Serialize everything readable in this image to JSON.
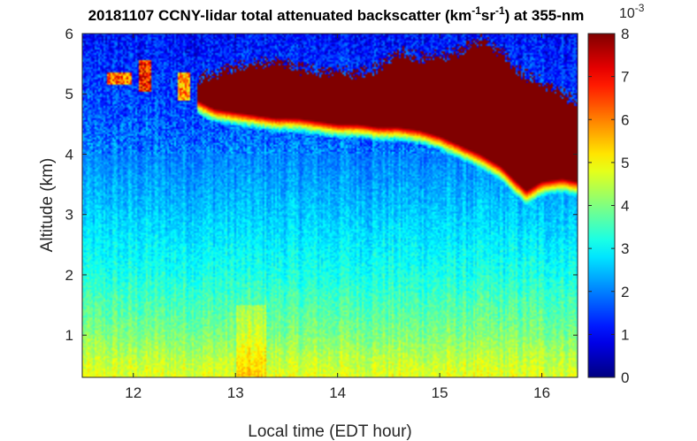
{
  "chart_data": {
    "type": "heatmap",
    "title": {
      "prefix": "20181107 CCNY-lidar total attenuated backscatter (km",
      "sup1": "-1",
      "mid": "sr",
      "sup2": "-1",
      "suffix": ") at 355-nm"
    },
    "xlabel": "Local time (EDT hour)",
    "ylabel": "Altitude (km)",
    "xlim": [
      11.5,
      16.35
    ],
    "ylim": [
      0.3,
      6
    ],
    "xticks": [
      12,
      13,
      14,
      15,
      16
    ],
    "yticks": [
      1,
      2,
      3,
      4,
      5,
      6
    ],
    "colorbar": {
      "range": [
        0,
        8
      ],
      "ticks": [
        0,
        1,
        2,
        3,
        4,
        5,
        6,
        7,
        8
      ],
      "exponent_label": "10",
      "exponent": "-3",
      "colormap": "jet"
    },
    "background_profile": {
      "altitude_km": [
        0.3,
        0.6,
        1.0,
        1.5,
        2.0,
        2.5,
        3.0,
        3.5,
        4.0,
        4.5,
        5.0,
        5.5,
        6.0
      ],
      "value": [
        4.8,
        4.5,
        4.0,
        3.6,
        3.2,
        2.9,
        2.6,
        2.3,
        2.0,
        1.7,
        1.5,
        1.3,
        1.1
      ]
    },
    "cloud_layer": {
      "time_hr": [
        12.62,
        12.8,
        13.0,
        13.2,
        13.4,
        13.6,
        13.8,
        14.0,
        14.2,
        14.4,
        14.6,
        14.8,
        15.0,
        15.2,
        15.4,
        15.6,
        15.75,
        15.85,
        16.0,
        16.2,
        16.35
      ],
      "base_km": [
        4.9,
        4.75,
        4.7,
        4.65,
        4.6,
        4.6,
        4.55,
        4.5,
        4.5,
        4.45,
        4.45,
        4.4,
        4.3,
        4.15,
        4.0,
        3.8,
        3.55,
        3.4,
        3.55,
        3.6,
        3.55
      ],
      "top_km": [
        5.25,
        5.35,
        5.45,
        5.5,
        5.55,
        5.45,
        5.35,
        5.4,
        5.3,
        5.45,
        5.7,
        5.6,
        5.65,
        5.7,
        5.9,
        5.7,
        5.4,
        5.3,
        5.2,
        5.0,
        4.8
      ],
      "value": 8
    },
    "small_clouds": [
      {
        "time_hr": [
          11.74,
          11.98
        ],
        "alt_km": [
          5.15,
          5.35
        ],
        "value": 7.5
      },
      {
        "time_hr": [
          12.06,
          12.18
        ],
        "alt_km": [
          5.05,
          5.55
        ],
        "value": 8
      },
      {
        "time_hr": [
          12.43,
          12.55
        ],
        "alt_km": [
          4.9,
          5.35
        ],
        "value": 7
      }
    ]
  }
}
